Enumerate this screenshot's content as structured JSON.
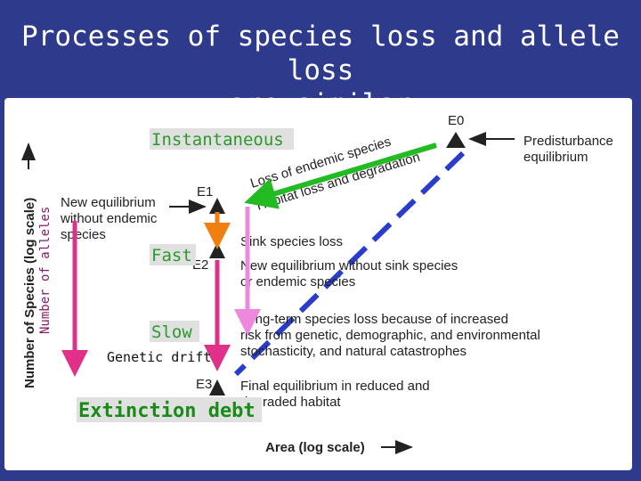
{
  "title": "Processes of species loss and allele loss are similar",
  "title_lines": [
    "Processes of species loss and allele loss",
    "are similar"
  ],
  "axes": {
    "y_label": "Number of Species (log scale)",
    "y_overlay_label": "Number of alleles",
    "x_label": "Area (log scale)"
  },
  "points": {
    "e0": "E0",
    "e1": "E1",
    "e2": "E2",
    "e3": "E3"
  },
  "figure_labels": {
    "predisturbance": [
      "Predisturbance",
      "equilibrium"
    ],
    "loss_endemic": "Loss of endemic species",
    "habitat_loss": "Habitat loss and degradation",
    "new_eq_left": [
      "New equilibrium",
      "without endemic",
      "species"
    ],
    "sink": "Sink species loss",
    "new_eq_sink": [
      "New equilibrium without sink species",
      "or endemic species"
    ],
    "longterm": [
      "Long-term species loss because of increased",
      "risk from genetic, demographic, and environmental",
      "stochasticity, and natural catastrophes"
    ],
    "final": [
      "Final equilibrium in reduced and",
      "degraded habitat"
    ]
  },
  "overlay_labels": {
    "instantaneous": "Instantaneous",
    "fast": "Fast",
    "slow": "Slow",
    "genetic_drift": "Genetic drift",
    "extinction_debt": "Extinction debt"
  },
  "colors": {
    "background": "#2e3a8c",
    "green_arrow": "#22bb22",
    "orange_arrow": "#f07f10",
    "magenta_arrow": "#e0308a",
    "pink_arrow": "#ee88dd",
    "dashed_line": "#2a3ccc",
    "overlay_text": "#2a9a2a",
    "extinction_text": "#1a8a1a"
  }
}
